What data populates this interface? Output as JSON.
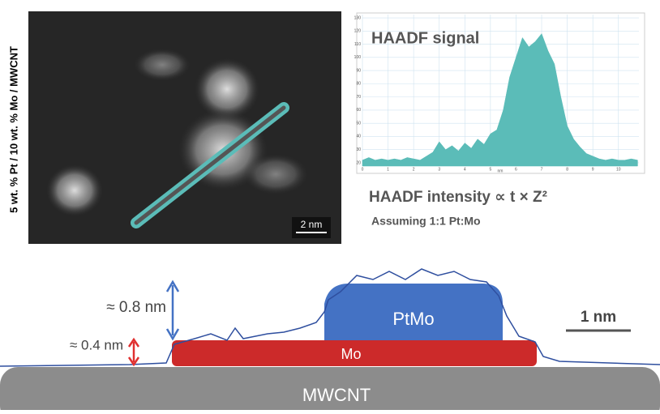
{
  "figure": {
    "side_label": "5 wt. % Pt / 10 wt. % Mo / MWCNT",
    "image_scale": "2 nm",
    "formula": "HAADF intensity ∝ t × Z²",
    "assumption": "Assuming 1:1 Pt:Mo",
    "height_large": "≈ 0.8 nm",
    "height_small": "≈ 0.4 nm",
    "scale": "1 nm",
    "layer_top": "PtMo",
    "layer_mid": "Mo",
    "substrate": "MWCNT"
  },
  "chart_data": {
    "type": "area",
    "title": "HAADF signal",
    "x_label": "nm",
    "color": "#5bbcb8",
    "grid": true,
    "x": [
      0,
      0.25,
      0.5,
      0.75,
      1,
      1.25,
      1.5,
      1.75,
      2,
      2.25,
      2.5,
      2.75,
      3,
      3.25,
      3.5,
      3.75,
      4,
      4.25,
      4.5,
      4.75,
      5,
      5.25,
      5.5,
      5.75,
      6,
      6.25,
      6.5,
      6.75,
      7,
      7.25,
      7.5,
      7.75,
      8,
      8.25,
      8.5,
      8.75,
      9,
      9.25,
      9.5,
      9.75,
      10,
      10.25,
      10.5,
      10.75
    ],
    "values": [
      22,
      24,
      22,
      23,
      22,
      23,
      22,
      24,
      23,
      22,
      25,
      28,
      36,
      30,
      33,
      29,
      35,
      31,
      38,
      34,
      42,
      45,
      60,
      85,
      100,
      115,
      108,
      112,
      118,
      105,
      95,
      70,
      48,
      38,
      32,
      27,
      25,
      23,
      22,
      23,
      22,
      22,
      23,
      22
    ],
    "xlim": [
      0,
      10.8
    ],
    "ylim": [
      17.5,
      132.5
    ],
    "xticks": [
      0,
      1,
      2,
      3,
      4,
      5,
      6,
      7,
      8,
      9,
      10
    ],
    "yticks": [
      20,
      30,
      40,
      50,
      60,
      70,
      80,
      90,
      100,
      110,
      120,
      130
    ]
  }
}
